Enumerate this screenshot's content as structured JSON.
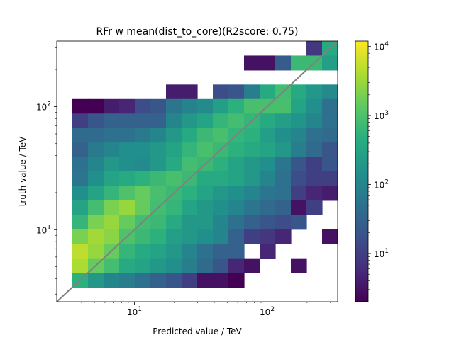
{
  "chart_data": {
    "type": "heatmap",
    "title": "RFr w mean(dist_to_core)(R2score: 0.75)",
    "xlabel": "Predicted value / TeV",
    "ylabel": "truth value / TeV",
    "xscale": "log",
    "yscale": "log",
    "xlim": [
      2.6,
      340
    ],
    "ylim": [
      2.6,
      340
    ],
    "xticks": [
      {
        "value": 10,
        "label": "10^1"
      },
      {
        "value": 100,
        "label": "10^2"
      }
    ],
    "yticks": [
      {
        "value": 10,
        "label": "10^1"
      },
      {
        "value": 100,
        "label": "10^2"
      }
    ],
    "colorbar": {
      "scale": "log",
      "range": [
        2,
        12000
      ],
      "ticks": [
        {
          "value": 10,
          "label": "10^1"
        },
        {
          "value": 100,
          "label": "10^2"
        },
        {
          "value": 1000,
          "label": "10^3"
        },
        {
          "value": 10000,
          "label": "10^4"
        }
      ],
      "colormap": "viridis"
    },
    "bins_per_axis": 18,
    "counts_rows_top_to_bottom": [
      [
        0,
        0,
        0,
        0,
        0,
        0,
        0,
        0,
        0,
        0,
        0,
        0,
        0,
        0,
        0,
        0,
        8,
        400
      ],
      [
        0,
        0,
        0,
        0,
        0,
        0,
        0,
        0,
        0,
        0,
        0,
        0,
        3,
        3,
        25,
        700,
        700,
        250
      ],
      [
        0,
        0,
        0,
        0,
        0,
        0,
        0,
        0,
        0,
        0,
        0,
        0,
        0,
        0,
        0,
        0,
        0,
        0
      ],
      [
        0,
        0,
        0,
        0,
        0,
        0,
        0,
        4,
        4,
        0,
        15,
        20,
        80,
        400,
        800,
        400,
        200,
        120
      ],
      [
        0,
        2,
        2,
        4,
        5,
        15,
        20,
        60,
        90,
        120,
        250,
        500,
        900,
        900,
        900,
        300,
        150,
        50
      ],
      [
        0,
        10,
        20,
        30,
        30,
        30,
        30,
        100,
        200,
        300,
        600,
        800,
        600,
        400,
        250,
        180,
        100,
        50
      ],
      [
        0,
        40,
        40,
        50,
        50,
        70,
        100,
        200,
        400,
        700,
        900,
        600,
        500,
        250,
        150,
        100,
        50,
        40
      ],
      [
        0,
        30,
        70,
        100,
        150,
        150,
        200,
        300,
        600,
        900,
        700,
        500,
        400,
        300,
        200,
        80,
        40,
        20
      ],
      [
        0,
        50,
        100,
        200,
        150,
        120,
        200,
        400,
        800,
        700,
        500,
        300,
        200,
        150,
        60,
        20,
        10,
        20
      ],
      [
        0,
        60,
        150,
        300,
        400,
        500,
        700,
        900,
        700,
        400,
        400,
        300,
        200,
        100,
        50,
        15,
        10,
        10
      ],
      [
        0,
        150,
        300,
        600,
        1000,
        1500,
        900,
        700,
        500,
        300,
        200,
        150,
        100,
        60,
        50,
        10,
        5,
        4
      ],
      [
        0,
        300,
        800,
        2000,
        3000,
        1500,
        800,
        600,
        300,
        200,
        150,
        100,
        60,
        40,
        30,
        3,
        10,
        0
      ],
      [
        0,
        600,
        2000,
        3000,
        1500,
        800,
        700,
        400,
        200,
        200,
        100,
        50,
        30,
        20,
        15,
        20,
        0,
        0
      ],
      [
        0,
        2000,
        3500,
        2500,
        1000,
        700,
        500,
        250,
        200,
        150,
        100,
        30,
        10,
        8,
        5,
        0,
        0,
        3
      ],
      [
        0,
        5000,
        3000,
        1500,
        600,
        400,
        300,
        200,
        100,
        50,
        30,
        30,
        0,
        5,
        0,
        0,
        0,
        0
      ],
      [
        0,
        4000,
        1500,
        800,
        400,
        300,
        200,
        150,
        80,
        40,
        20,
        5,
        3,
        0,
        0,
        3,
        0,
        0
      ],
      [
        0,
        500,
        200,
        100,
        80,
        50,
        30,
        20,
        10,
        3,
        3,
        2,
        0,
        0,
        0,
        0,
        0,
        0
      ],
      [
        0,
        0,
        0,
        0,
        0,
        0,
        0,
        0,
        0,
        0,
        0,
        0,
        0,
        0,
        0,
        0,
        0,
        0
      ]
    ],
    "reference_line": "y = x",
    "reference_line_color": "#808080"
  }
}
